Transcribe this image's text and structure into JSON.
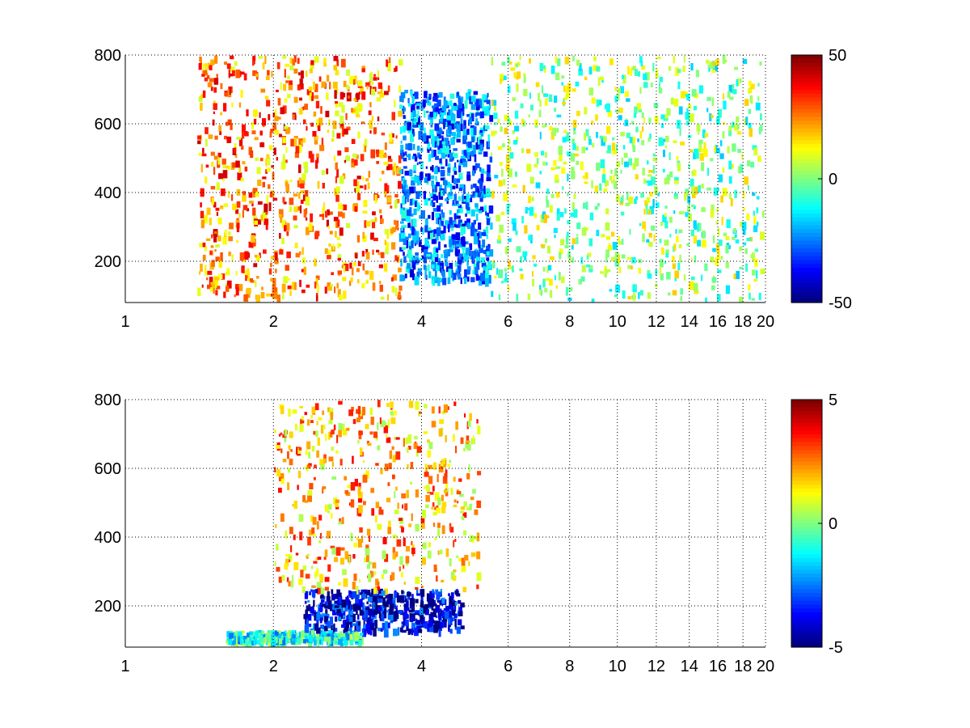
{
  "chart_data": [
    {
      "type": "heatmap",
      "title": "",
      "xlabel": "",
      "ylabel": "",
      "xlim": [
        1,
        20
      ],
      "ylim": [
        80,
        800
      ],
      "x_scale": "log",
      "x_ticks": [
        1,
        2,
        4,
        6,
        8,
        10,
        12,
        14,
        16,
        18,
        20
      ],
      "x_tick_labels": [
        "1",
        "2",
        "4",
        "6",
        "8",
        "10",
        "12",
        "14",
        "16",
        "18",
        "20"
      ],
      "y_ticks": [
        200,
        400,
        600,
        800
      ],
      "y_tick_labels": [
        "200",
        "400",
        "600",
        "800"
      ],
      "grid": "dotted",
      "colormap": "jet",
      "colorbar": {
        "min": -50,
        "max": 50,
        "tick_values": [
          50,
          0,
          -50
        ],
        "tick_labels": [
          "50",
          "0",
          "-50"
        ]
      },
      "description_of_field": [
        {
          "x_range": [
            1.4,
            3.6
          ],
          "y_range": [
            80,
            800
          ],
          "typical_value": 25,
          "note": "positive (red-orange) band"
        },
        {
          "x_range": [
            3.6,
            5.5
          ],
          "y_range": [
            150,
            700
          ],
          "typical_value": -25,
          "note": "negative (blue) band"
        },
        {
          "x_range": [
            5.5,
            20
          ],
          "y_range": [
            80,
            800
          ],
          "typical_value": 0,
          "note": "sparse near-zero values"
        }
      ]
    },
    {
      "type": "heatmap",
      "title": "",
      "xlabel": "",
      "ylabel": "",
      "xlim": [
        1,
        20
      ],
      "ylim": [
        80,
        800
      ],
      "x_scale": "log",
      "x_ticks": [
        1,
        2,
        4,
        6,
        8,
        10,
        12,
        14,
        16,
        18,
        20
      ],
      "x_tick_labels": [
        "1",
        "2",
        "4",
        "6",
        "8",
        "10",
        "12",
        "14",
        "16",
        "18",
        "20"
      ],
      "y_ticks": [
        200,
        400,
        600,
        800
      ],
      "y_tick_labels": [
        "200",
        "400",
        "600",
        "800"
      ],
      "grid": "dotted",
      "colormap": "jet",
      "colorbar": {
        "min": -5,
        "max": 5,
        "tick_values": [
          5,
          0,
          -5
        ],
        "tick_labels": [
          "5",
          "0",
          "-5"
        ]
      },
      "description_of_field": [
        {
          "x_range": [
            2.0,
            5.2
          ],
          "y_range": [
            250,
            800
          ],
          "typical_value": 2,
          "note": "positive scattered values"
        },
        {
          "x_range": [
            2.3,
            4.8
          ],
          "y_range": [
            130,
            250
          ],
          "typical_value": -4,
          "note": "negative (blue) band"
        },
        {
          "x_range": [
            1.6,
            3.0
          ],
          "y_range": [
            80,
            130
          ],
          "typical_value": -1,
          "note": "weak values near bottom"
        }
      ]
    }
  ]
}
